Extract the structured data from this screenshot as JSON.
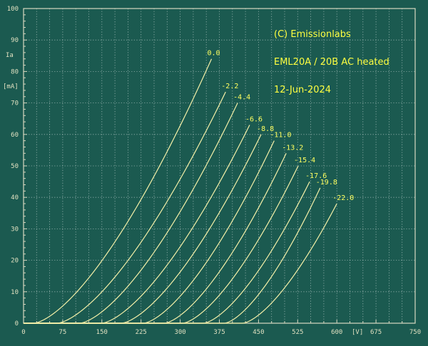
{
  "colors": {
    "background": "#1b5a50",
    "grid": "#ffffff",
    "curve": "#f4f0a8",
    "label": "#ffff60",
    "note": "#ffff40"
  },
  "annotations": {
    "copyright": "(C) Emissionlabs",
    "model": "EML20A / 20B  AC heated",
    "date": "12-Jun-2024"
  },
  "chart_data": {
    "type": "line",
    "ylabel": "Ia",
    "yunit": "[mA]",
    "xunit": "[V]",
    "xlim": [
      0,
      750
    ],
    "ylim": [
      0,
      100
    ],
    "x_ticks": [
      "0",
      "75",
      "150",
      "225",
      "300",
      "375",
      "450",
      "525",
      "600",
      "",
      "675",
      "750"
    ],
    "y_ticks": [
      "0",
      "10",
      "20",
      "30",
      "40",
      "50",
      "60",
      "70",
      "80",
      "90",
      "100"
    ],
    "grid": true,
    "series": [
      {
        "name": "0.0",
        "x0": 20,
        "x": 360,
        "y": 84
      },
      {
        "name": "-2.2",
        "x0": 65,
        "x": 387,
        "y": 73.5
      },
      {
        "name": "-4.4",
        "x0": 108,
        "x": 410,
        "y": 70
      },
      {
        "name": "-6.6",
        "x0": 150,
        "x": 433,
        "y": 63
      },
      {
        "name": "-8.8",
        "x0": 188,
        "x": 455,
        "y": 60
      },
      {
        "name": "-11.0",
        "x0": 230,
        "x": 480,
        "y": 58
      },
      {
        "name": "-13.2",
        "x0": 270,
        "x": 503,
        "y": 54
      },
      {
        "name": "-15.4",
        "x0": 305,
        "x": 526,
        "y": 50
      },
      {
        "name": "-17.6",
        "x0": 345,
        "x": 548,
        "y": 45
      },
      {
        "name": "-19.8",
        "x0": 385,
        "x": 568,
        "y": 43
      },
      {
        "name": "-22.0",
        "x0": 420,
        "x": 600,
        "y": 38
      }
    ]
  }
}
